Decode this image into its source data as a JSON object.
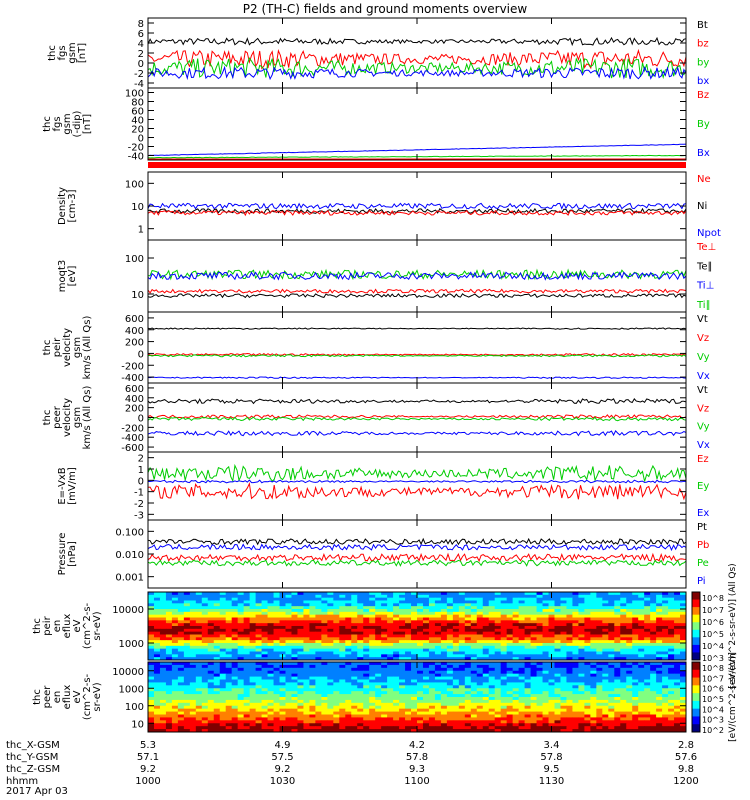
{
  "title": "P2 (TH-C) fields and ground moments overview",
  "date_label": "2017 Apr 03",
  "chart_data": [
    {
      "id": "p1",
      "type": "line",
      "ylabel": [
        "thc",
        "fgs",
        "gsm",
        "[nT]"
      ],
      "yticks": [
        "8",
        "6",
        "4",
        "2",
        "0",
        "-2",
        "-4"
      ],
      "legend": [
        {
          "text": "Bt",
          "color": "#000000"
        },
        {
          "text": "bz",
          "color": "#ff0000"
        },
        {
          "text": "by",
          "color": "#00cc00"
        },
        {
          "text": "bx",
          "color": "#0000ff"
        }
      ],
      "series": [
        {
          "name": "Bt",
          "color": "#000000",
          "level": 4.3,
          "amp": 0.6
        },
        {
          "name": "bz",
          "color": "#ff0000",
          "level": 0.8,
          "amp": 1.6
        },
        {
          "name": "by",
          "color": "#00cc00",
          "level": -1.0,
          "amp": 1.7
        },
        {
          "name": "bx",
          "color": "#0000ff",
          "level": -2.0,
          "amp": 1.0
        }
      ]
    },
    {
      "id": "p2",
      "type": "line",
      "ylabel": [
        "thc",
        "fgs",
        "gsm",
        "(-dip)",
        "[nT]"
      ],
      "yticks": [
        "100",
        "80",
        "60",
        "40",
        "20",
        "0",
        "-20",
        "-40"
      ],
      "legend": [
        {
          "text": "Bz",
          "color": "#ff0000"
        },
        {
          "text": "By",
          "color": "#00cc00"
        },
        {
          "text": "Bx",
          "color": "#0000ff"
        }
      ],
      "series": [
        {
          "name": "Bx",
          "color": "#0000ff",
          "start": -40,
          "end": -15,
          "amp": 1
        },
        {
          "name": "By",
          "color": "#00cc00",
          "start": -45,
          "end": -40,
          "amp": 1
        },
        {
          "name": "Bz",
          "color": "#ff0000",
          "start": -50,
          "end": -48,
          "amp": 0.5
        }
      ]
    },
    {
      "id": "p3",
      "type": "line",
      "ylabel": [
        "Density",
        "[cm-3]"
      ],
      "yticks": [
        "100",
        "10",
        "1"
      ],
      "legend": [
        {
          "text": "Ne",
          "color": "#ff0000"
        },
        {
          "text": "Ni",
          "color": "#000000"
        },
        {
          "text": "Npot",
          "color": "#0000ff"
        }
      ],
      "series": [
        {
          "name": "Npot",
          "color": "#0000ff",
          "level": 10,
          "amp": 0.12
        },
        {
          "name": "Ni",
          "color": "#000000",
          "level": 6,
          "amp": 0.1
        },
        {
          "name": "Ne",
          "color": "#ff0000",
          "level": 5,
          "amp": 0.1
        }
      ]
    },
    {
      "id": "p4",
      "type": "line",
      "ylabel": [
        "moqt3",
        "[eV]"
      ],
      "yticks": [
        "100",
        "10"
      ],
      "legend": [
        {
          "text": "Te⊥",
          "color": "#ff0000"
        },
        {
          "text": "Te∥",
          "color": "#000000"
        },
        {
          "text": "Ti⊥",
          "color": "#0000ff"
        },
        {
          "text": "Ti∥",
          "color": "#00cc00"
        }
      ],
      "series": [
        {
          "name": "Ti∥",
          "color": "#00cc00",
          "level": 35,
          "amp": 0.12
        },
        {
          "name": "Ti⊥",
          "color": "#0000ff",
          "level": 32,
          "amp": 0.1
        },
        {
          "name": "Te⊥",
          "color": "#ff0000",
          "level": 12,
          "amp": 0.05
        },
        {
          "name": "Te∥",
          "color": "#000000",
          "level": 9,
          "amp": 0.05
        }
      ]
    },
    {
      "id": "p5",
      "type": "line",
      "ylabel": [
        "thc",
        "peir",
        "velocity",
        "gsm",
        "km/s (All Qs)"
      ],
      "yticks": [
        "600",
        "400",
        "200",
        "0",
        "-200",
        "-400"
      ],
      "legend": [
        {
          "text": "Vt",
          "color": "#000000"
        },
        {
          "text": "Vz",
          "color": "#ff0000"
        },
        {
          "text": "Vy",
          "color": "#00cc00"
        },
        {
          "text": "Vx",
          "color": "#0000ff"
        }
      ],
      "series": [
        {
          "name": "Vt",
          "color": "#000000",
          "level": 420,
          "amp": 10
        },
        {
          "name": "Vz",
          "color": "#ff0000",
          "level": -20,
          "amp": 15
        },
        {
          "name": "Vy",
          "color": "#00cc00",
          "level": -40,
          "amp": 15
        },
        {
          "name": "Vx",
          "color": "#0000ff",
          "level": -410,
          "amp": 10
        }
      ]
    },
    {
      "id": "p6",
      "type": "line",
      "ylabel": [
        "thc",
        "peer",
        "velocity",
        "gsm",
        "km/s (All Qs)"
      ],
      "yticks": [
        "600",
        "400",
        "200",
        "0",
        "-200",
        "-400",
        "-600"
      ],
      "legend": [
        {
          "text": "Vt",
          "color": "#000000"
        },
        {
          "text": "Vz",
          "color": "#ff0000"
        },
        {
          "text": "Vy",
          "color": "#00cc00"
        },
        {
          "text": "Vx",
          "color": "#0000ff"
        }
      ],
      "series": [
        {
          "name": "Vt",
          "color": "#000000",
          "level": 330,
          "amp": 40
        },
        {
          "name": "Vz",
          "color": "#ff0000",
          "level": 20,
          "amp": 30
        },
        {
          "name": "Vy",
          "color": "#00cc00",
          "level": -30,
          "amp": 30
        },
        {
          "name": "Vx",
          "color": "#0000ff",
          "level": -320,
          "amp": 40
        }
      ]
    },
    {
      "id": "p7",
      "type": "line",
      "ylabel": [
        "E=-VxB",
        "[mV/m]"
      ],
      "yticks": [
        "2",
        "1",
        "0",
        "-1",
        "-2",
        "-3"
      ],
      "legend": [
        {
          "text": "Ez",
          "color": "#ff0000"
        },
        {
          "text": "Ey",
          "color": "#00cc00"
        },
        {
          "text": "Ex",
          "color": "#0000ff"
        }
      ],
      "series": [
        {
          "name": "Ey",
          "color": "#00cc00",
          "level": 0.6,
          "amp": 0.6
        },
        {
          "name": "Ex",
          "color": "#0000ff",
          "level": -0.1,
          "amp": 0.1
        },
        {
          "name": "Ez",
          "color": "#ff0000",
          "level": -1.0,
          "amp": 0.6
        }
      ]
    },
    {
      "id": "p8",
      "type": "line",
      "ylabel": [
        "Pressure",
        "[nPa]"
      ],
      "yticks": [
        "0.100",
        "0.010",
        "0.001"
      ],
      "legend": [
        {
          "text": "Pt",
          "color": "#000000"
        },
        {
          "text": "Pb",
          "color": "#ff0000"
        },
        {
          "text": "Pe",
          "color": "#00cc00"
        },
        {
          "text": "Pi",
          "color": "#0000ff"
        }
      ],
      "series": [
        {
          "name": "Pt",
          "color": "#000000",
          "level": 0.035,
          "amp": 0.12
        },
        {
          "name": "Pi",
          "color": "#0000ff",
          "level": 0.02,
          "amp": 0.12
        },
        {
          "name": "Pb",
          "color": "#ff0000",
          "level": 0.007,
          "amp": 0.15
        },
        {
          "name": "Pe",
          "color": "#00cc00",
          "level": 0.004,
          "amp": 0.12
        }
      ]
    },
    {
      "id": "p9",
      "type": "heatmap",
      "ylabel": [
        "thc",
        "peir",
        "en",
        "eflux",
        "eV",
        "(cm^2-s-",
        "sr-eV)"
      ],
      "yticks": [
        "10000",
        "1000"
      ],
      "colorbar_ticks": [
        "10^8",
        "10^7",
        "10^6",
        "10^5",
        "10^4",
        "10^3"
      ],
      "colorbar_label": "[eV/(cm^2-s-sr-eV)] (All Qs)"
    },
    {
      "id": "p10",
      "type": "heatmap",
      "ylabel": [
        "thc",
        "peer",
        "en",
        "eflux",
        "eV",
        "(cm^2-s-",
        "sr-eV)"
      ],
      "yticks": [
        "10000",
        "1000",
        "100",
        "10"
      ],
      "colorbar_ticks": [
        "10^8",
        "10^7",
        "10^6",
        "10^5",
        "10^4",
        "10^3",
        "10^2"
      ],
      "colorbar_label": "[eV/(cm^2-s-sr-eV)]"
    }
  ],
  "x_axis": {
    "row_labels": [
      "thc_X-GSM",
      "thc_Y-GSM",
      "thc_Z-GSM",
      "hhmm"
    ],
    "columns": [
      {
        "x": "5.3",
        "y": "57.1",
        "z": "9.2",
        "hhmm": "1000"
      },
      {
        "x": "4.9",
        "y": "57.5",
        "z": "9.2",
        "hhmm": "1030"
      },
      {
        "x": "4.2",
        "y": "57.8",
        "z": "9.3",
        "hhmm": "1100"
      },
      {
        "x": "3.4",
        "y": "57.8",
        "z": "9.5",
        "hhmm": "1130"
      },
      {
        "x": "2.8",
        "y": "57.6",
        "z": "9.8",
        "hhmm": "1200"
      }
    ]
  }
}
